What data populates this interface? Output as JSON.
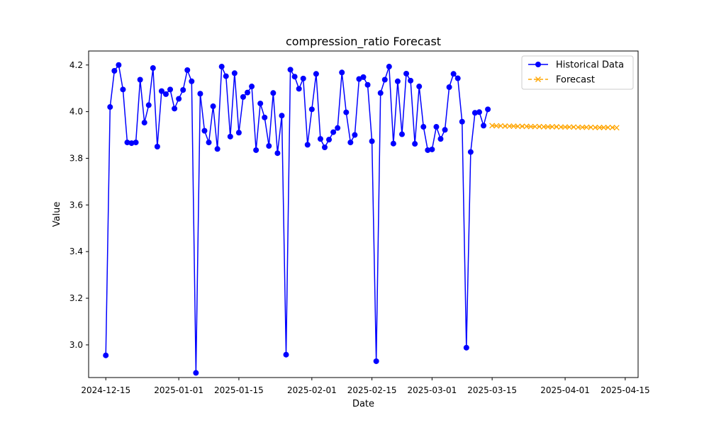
{
  "chart_data": {
    "type": "line",
    "title": "compression_ratio Forecast",
    "xlabel": "Date",
    "ylabel": "Value",
    "xlim": [
      "2024-12-11",
      "2025-04-18"
    ],
    "ylim": [
      2.86,
      4.26
    ],
    "x_ticks": [
      "2024-12-15",
      "2025-01-01",
      "2025-01-15",
      "2025-02-01",
      "2025-02-15",
      "2025-03-01",
      "2025-03-15",
      "2025-04-01",
      "2025-04-15"
    ],
    "y_ticks": [
      "3.0",
      "3.2",
      "3.4",
      "3.6",
      "3.8",
      "4.0",
      "4.2"
    ],
    "grid": false,
    "legend_position": "top-right",
    "series": [
      {
        "name": "Historical Data",
        "color": "#0000ff",
        "line_style": "solid",
        "marker": "circle",
        "x": [
          "2024-12-15",
          "2024-12-16",
          "2024-12-17",
          "2024-12-18",
          "2024-12-19",
          "2024-12-20",
          "2024-12-21",
          "2024-12-22",
          "2024-12-23",
          "2024-12-24",
          "2024-12-25",
          "2024-12-26",
          "2024-12-27",
          "2024-12-28",
          "2024-12-29",
          "2024-12-30",
          "2024-12-31",
          "2025-01-01",
          "2025-01-02",
          "2025-01-03",
          "2025-01-04",
          "2025-01-05",
          "2025-01-06",
          "2025-01-07",
          "2025-01-08",
          "2025-01-09",
          "2025-01-10",
          "2025-01-11",
          "2025-01-12",
          "2025-01-13",
          "2025-01-14",
          "2025-01-15",
          "2025-01-16",
          "2025-01-17",
          "2025-01-18",
          "2025-01-19",
          "2025-01-20",
          "2025-01-21",
          "2025-01-22",
          "2025-01-23",
          "2025-01-24",
          "2025-01-25",
          "2025-01-26",
          "2025-01-27",
          "2025-01-28",
          "2025-01-29",
          "2025-01-30",
          "2025-01-31",
          "2025-02-01",
          "2025-02-02",
          "2025-02-03",
          "2025-02-04",
          "2025-02-05",
          "2025-02-06",
          "2025-02-07",
          "2025-02-08",
          "2025-02-09",
          "2025-02-10",
          "2025-02-11",
          "2025-02-12",
          "2025-02-13",
          "2025-02-14",
          "2025-02-15",
          "2025-02-16",
          "2025-02-17",
          "2025-02-18",
          "2025-02-19",
          "2025-02-20",
          "2025-02-21",
          "2025-02-22",
          "2025-02-23",
          "2025-02-24",
          "2025-02-25",
          "2025-02-26",
          "2025-02-27",
          "2025-02-28",
          "2025-03-01",
          "2025-03-02",
          "2025-03-03",
          "2025-03-04",
          "2025-03-05",
          "2025-03-06",
          "2025-03-07",
          "2025-03-08",
          "2025-03-09",
          "2025-03-10",
          "2025-03-11",
          "2025-03-12",
          "2025-03-13",
          "2025-03-14"
        ],
        "values": [
          2.955,
          4.02,
          4.175,
          4.2,
          4.095,
          3.868,
          3.865,
          3.868,
          4.137,
          3.953,
          4.028,
          4.187,
          3.85,
          4.088,
          4.075,
          4.095,
          4.013,
          4.055,
          4.093,
          4.178,
          4.13,
          2.88,
          4.077,
          3.918,
          3.868,
          4.023,
          3.84,
          4.193,
          4.152,
          3.893,
          4.165,
          3.91,
          4.063,
          4.082,
          4.108,
          3.835,
          4.035,
          3.975,
          3.853,
          4.08,
          3.822,
          3.983,
          2.958,
          4.18,
          4.15,
          4.098,
          4.142,
          3.858,
          4.01,
          4.162,
          3.883,
          3.847,
          3.88,
          3.912,
          3.93,
          4.168,
          3.997,
          3.868,
          3.9,
          4.14,
          4.148,
          4.115,
          3.873,
          2.93,
          4.08,
          4.137,
          4.193,
          3.863,
          4.13,
          3.903,
          4.163,
          4.133,
          3.862,
          4.108,
          3.935,
          3.835,
          3.838,
          3.935,
          3.883,
          3.922,
          4.105,
          4.162,
          4.143,
          3.957,
          2.988,
          3.827,
          3.995,
          3.998,
          3.94,
          4.01
        ]
      },
      {
        "name": "Forecast",
        "color": "#ffa500",
        "line_style": "dashed",
        "marker": "x",
        "x": [
          "2025-03-15",
          "2025-03-16",
          "2025-03-17",
          "2025-03-18",
          "2025-03-19",
          "2025-03-20",
          "2025-03-21",
          "2025-03-22",
          "2025-03-23",
          "2025-03-24",
          "2025-03-25",
          "2025-03-26",
          "2025-03-27",
          "2025-03-28",
          "2025-03-29",
          "2025-03-30",
          "2025-03-31",
          "2025-04-01",
          "2025-04-02",
          "2025-04-03",
          "2025-04-04",
          "2025-04-05",
          "2025-04-06",
          "2025-04-07",
          "2025-04-08",
          "2025-04-09",
          "2025-04-10",
          "2025-04-11",
          "2025-04-12",
          "2025-04-13"
        ],
        "values": [
          3.94,
          3.939,
          3.939,
          3.938,
          3.938,
          3.938,
          3.937,
          3.937,
          3.937,
          3.936,
          3.936,
          3.936,
          3.935,
          3.935,
          3.935,
          3.935,
          3.934,
          3.934,
          3.934,
          3.934,
          3.933,
          3.933,
          3.933,
          3.933,
          3.932,
          3.932,
          3.932,
          3.932,
          3.932,
          3.931
        ]
      }
    ]
  }
}
